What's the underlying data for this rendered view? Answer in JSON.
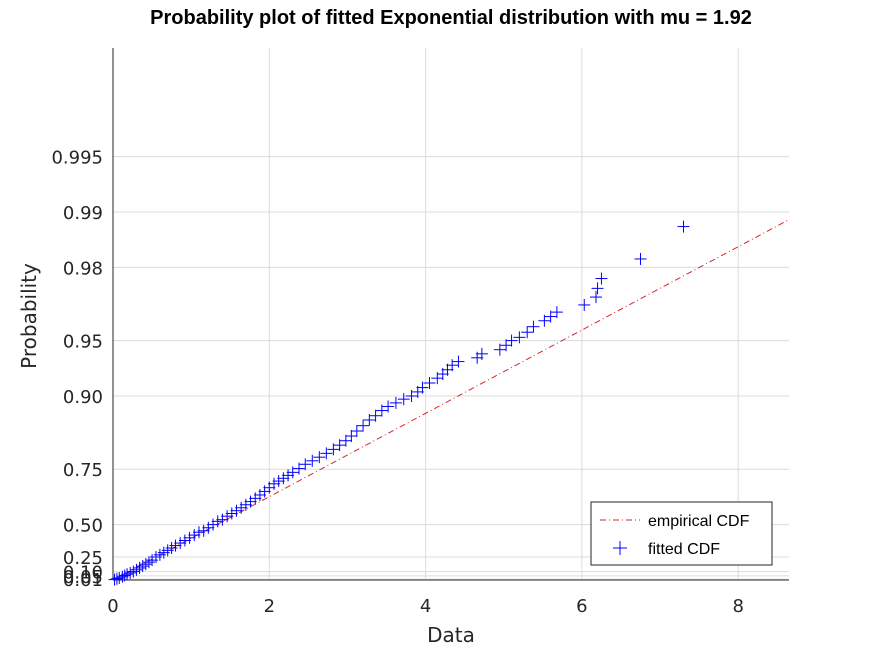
{
  "chart_data": {
    "type": "scatter",
    "title": "Probability plot of fitted Exponential distribution with mu = 1.92",
    "xlabel": "Data",
    "ylabel": "Probability",
    "xlim": [
      0,
      8.65
    ],
    "x_ticks": [
      0,
      2,
      4,
      6,
      8
    ],
    "x_tick_labels": [
      "0",
      "2",
      "4",
      "6",
      "8"
    ],
    "y_scale": "exponential-probability",
    "y_ticks": [
      0.01,
      0.05,
      0.1,
      0.25,
      0.5,
      0.75,
      0.9,
      0.95,
      0.98,
      0.99,
      0.995
    ],
    "y_tick_labels": [
      "0.01",
      "0.05",
      "0.10",
      "0.25",
      "0.50",
      "0.75",
      "0.90",
      "0.95",
      "0.98",
      "0.99",
      "0.995"
    ],
    "grid": true,
    "legend_position": "bottom-right",
    "colors": {
      "line": "#d62728",
      "points": "#0000ff",
      "grid": "#dcdcdc"
    },
    "series": [
      {
        "name": "empirical CDF",
        "style": "dash-dot",
        "x": [
          0,
          8.65
        ],
        "y": [
          0,
          0.989
        ]
      },
      {
        "name": "fitted CDF",
        "marker": "+",
        "x": [
          0.02,
          0.05,
          0.08,
          0.12,
          0.15,
          0.18,
          0.22,
          0.26,
          0.3,
          0.34,
          0.38,
          0.42,
          0.46,
          0.5,
          0.55,
          0.6,
          0.65,
          0.7,
          0.75,
          0.8,
          0.86,
          0.92,
          0.98,
          1.04,
          1.1,
          1.16,
          1.22,
          1.28,
          1.34,
          1.4,
          1.46,
          1.52,
          1.58,
          1.64,
          1.7,
          1.76,
          1.82,
          1.88,
          1.94,
          2.0,
          2.06,
          2.12,
          2.18,
          2.24,
          2.3,
          2.38,
          2.46,
          2.55,
          2.64,
          2.73,
          2.82,
          2.9,
          2.98,
          3.05,
          3.12,
          3.2,
          3.28,
          3.36,
          3.44,
          3.52,
          3.62,
          3.72,
          3.82,
          3.9,
          3.96,
          4.05,
          4.15,
          4.22,
          4.28,
          4.34,
          4.42,
          4.66,
          4.72,
          4.95,
          5.03,
          5.1,
          5.2,
          5.3,
          5.38,
          5.52,
          5.6,
          5.68,
          6.03,
          6.18,
          6.2,
          6.25,
          6.75,
          7.3
        ],
        "y": [
          0.005,
          0.015,
          0.025,
          0.04,
          0.055,
          0.07,
          0.085,
          0.1,
          0.12,
          0.14,
          0.16,
          0.18,
          0.2,
          0.22,
          0.25,
          0.27,
          0.29,
          0.31,
          0.33,
          0.35,
          0.37,
          0.39,
          0.41,
          0.43,
          0.45,
          0.46,
          0.48,
          0.5,
          0.52,
          0.53,
          0.55,
          0.565,
          0.58,
          0.595,
          0.61,
          0.625,
          0.64,
          0.655,
          0.67,
          0.685,
          0.7,
          0.71,
          0.72,
          0.73,
          0.74,
          0.752,
          0.765,
          0.775,
          0.785,
          0.795,
          0.805,
          0.815,
          0.825,
          0.835,
          0.845,
          0.855,
          0.865,
          0.872,
          0.88,
          0.886,
          0.891,
          0.896,
          0.9,
          0.905,
          0.91,
          0.915,
          0.92,
          0.924,
          0.928,
          0.932,
          0.935,
          0.938,
          0.941,
          0.944,
          0.947,
          0.95,
          0.952,
          0.955,
          0.958,
          0.961,
          0.963,
          0.965,
          0.968,
          0.971,
          0.974,
          0.977,
          0.982,
          0.988
        ]
      }
    ]
  }
}
